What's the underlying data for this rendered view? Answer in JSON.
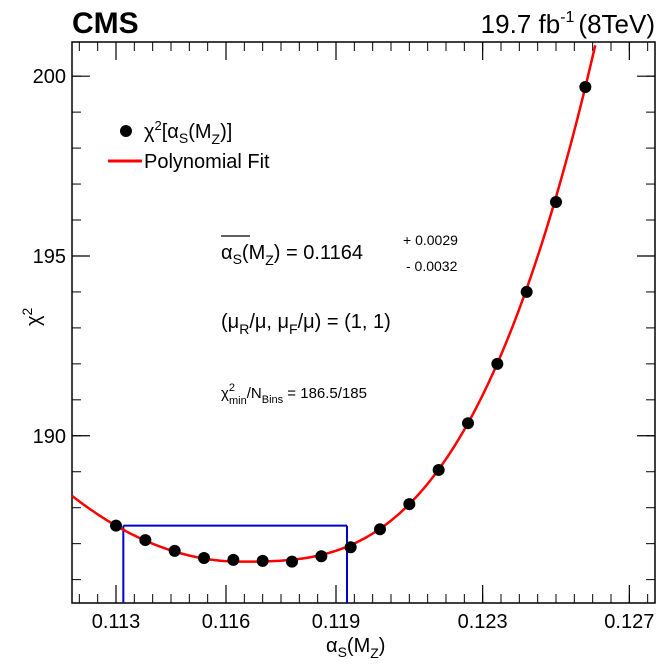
{
  "chart_data": {
    "type": "scatter",
    "experiment": "CMS",
    "luminosity": {
      "value": "19.7 fb",
      "exp": "-1",
      "energy": "(8TeV)"
    },
    "xlabel": {
      "main": "α",
      "sub": "S",
      "arg": "(M",
      "argsub": "Z",
      "close": ")"
    },
    "ylabel": {
      "main": "χ",
      "sup": "2"
    },
    "xlim": [
      0.1118,
      0.1277
    ],
    "ylim": [
      185.35,
      200.95
    ],
    "x_ticks": [
      {
        "value": 0.113,
        "label": "0.113"
      },
      {
        "value": 0.116,
        "label": "0.116"
      },
      {
        "value": 0.119,
        "label": "0.119"
      },
      {
        "value": 0.123,
        "label": "0.123"
      },
      {
        "value": 0.127,
        "label": "0.127"
      }
    ],
    "y_ticks": [
      {
        "value": 190,
        "label": "190"
      },
      {
        "value": 195,
        "label": "195"
      },
      {
        "value": 200,
        "label": "200"
      }
    ],
    "series": [
      {
        "name": "χ²[αS(MZ)]",
        "type": "points",
        "color": "#000000",
        "x": [
          0.113,
          0.1138,
          0.1146,
          0.1154,
          0.1162,
          0.117,
          0.1178,
          0.1186,
          0.1194,
          0.1202,
          0.121,
          0.1218,
          0.1226,
          0.1234,
          0.1242,
          0.125,
          0.1258
        ],
        "y": [
          187.5,
          187.1,
          186.8,
          186.6,
          186.55,
          186.52,
          186.5,
          186.65,
          186.9,
          187.4,
          188.1,
          189.05,
          190.35,
          192.0,
          194.0,
          196.5,
          199.7
        ]
      },
      {
        "name": "Polynomial Fit",
        "type": "line",
        "color": "#ff0000",
        "form": "quadratic-cubic",
        "x_min": 0.1164,
        "chi2_min": 186.5
      }
    ],
    "uncertainty_box": {
      "color": "#0000cc",
      "x_low": 0.1132,
      "x_high": 0.1193,
      "y_level": 187.5
    },
    "legend": {
      "placement": "top-left",
      "entries": [
        {
          "marker": "point",
          "text": "χ",
          "sup": "2",
          "rest": "[α",
          "sub": "S",
          "rest2": "(M",
          "sub2": "Z",
          "rest3": ")]"
        },
        {
          "marker": "line",
          "text": "Polynomial Fit"
        }
      ]
    },
    "annotations": {
      "alpha_result": {
        "lhs": "α",
        "lhs_sub": "S",
        "mid": "(M",
        "mid_sub": "Z",
        "eq": ") = 0.1164",
        "up": "+ 0.0029",
        "down": "- 0.0032"
      },
      "scales": {
        "open": "(μ",
        "sub1": "R",
        "mid1": "/μ, μ",
        "sub2": "F",
        "mid2": "/μ) = (1, 1)"
      },
      "chi2_ndf": {
        "chi": "χ",
        "sup": "2",
        "sub": "min",
        "slash": "/N",
        "sub2": "Bins",
        "val": " = 186.5/185"
      }
    }
  }
}
